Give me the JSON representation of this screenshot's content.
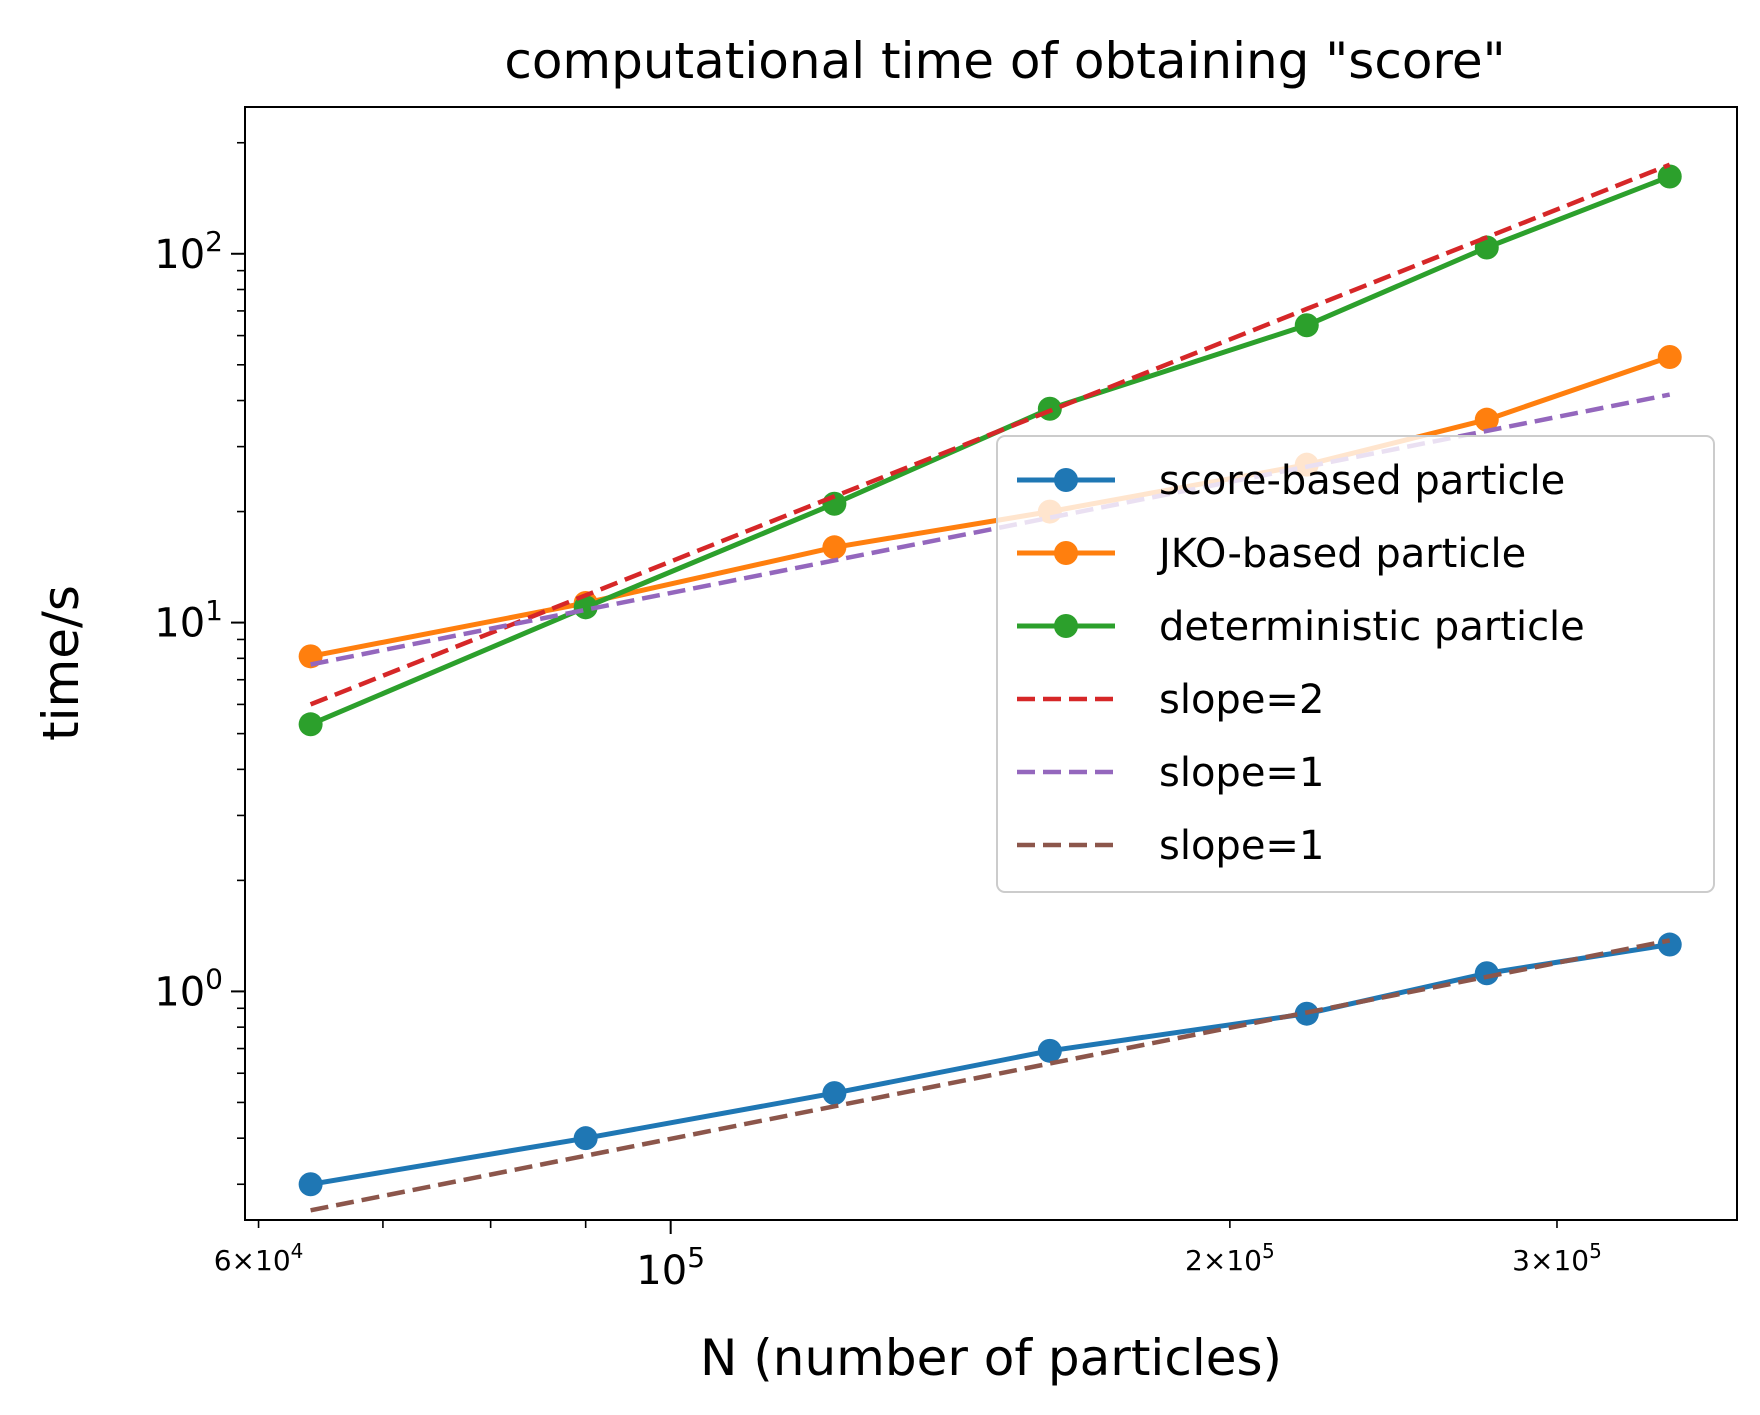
{
  "chart_data": {
    "type": "line",
    "title": "computational time of obtaining \"score\"",
    "xlabel": "N (number of particles)",
    "ylabel": "time/s",
    "xscale": "log",
    "yscale": "log",
    "xlim": [
      59000,
      375000
    ],
    "ylim": [
      0.24,
      250
    ],
    "grid": false,
    "legend_position": "center-right",
    "x_major_ticks": [
      {
        "value": 100000,
        "base": "10",
        "exp": "5"
      }
    ],
    "x_minor_labeled_ticks": [
      {
        "value": 60000,
        "mant": "6",
        "base": "10",
        "exp": "4"
      },
      {
        "value": 200000,
        "mant": "2",
        "base": "10",
        "exp": "5"
      },
      {
        "value": 300000,
        "mant": "3",
        "base": "10",
        "exp": "5"
      }
    ],
    "y_major_ticks": [
      {
        "value": 1,
        "base": "10",
        "exp": "0"
      },
      {
        "value": 10,
        "base": "10",
        "exp": "1"
      },
      {
        "value": 100,
        "base": "10",
        "exp": "2"
      }
    ],
    "x": [
      64000,
      90000,
      122500,
      160000,
      220000,
      275000,
      345000
    ],
    "series": [
      {
        "name": "score-based particle",
        "color": "#1f77b4",
        "style": "solid",
        "marker": true,
        "values": [
          0.3,
          0.4,
          0.53,
          0.69,
          0.87,
          1.12,
          1.34
        ]
      },
      {
        "name": "JKO-based particle",
        "color": "#ff7f0e",
        "style": "solid",
        "marker": true,
        "values": [
          8.1,
          11.3,
          16.0,
          20.0,
          26.8,
          35.5,
          52.5
        ]
      },
      {
        "name": "deterministic particle",
        "color": "#2ca02c",
        "style": "solid",
        "marker": true,
        "values": [
          5.3,
          11.0,
          21.0,
          38.0,
          64.0,
          104.0,
          162.0
        ]
      },
      {
        "name": "slope=2",
        "color": "#d62728",
        "style": "dashed",
        "marker": false,
        "values": [
          6.0,
          11.86,
          21.99,
          37.5,
          70.9,
          110.8,
          174.4
        ]
      },
      {
        "name": "slope=1",
        "color": "#9467bd",
        "style": "dashed",
        "marker": false,
        "values": [
          7.7,
          10.83,
          14.74,
          19.25,
          26.47,
          33.09,
          41.51
        ]
      },
      {
        "name": "slope=1",
        "color": "#8c564b",
        "style": "dashed",
        "marker": false,
        "values": [
          0.255,
          0.3586,
          0.4881,
          0.6375,
          0.8766,
          1.0957,
          1.3747
        ]
      }
    ]
  }
}
